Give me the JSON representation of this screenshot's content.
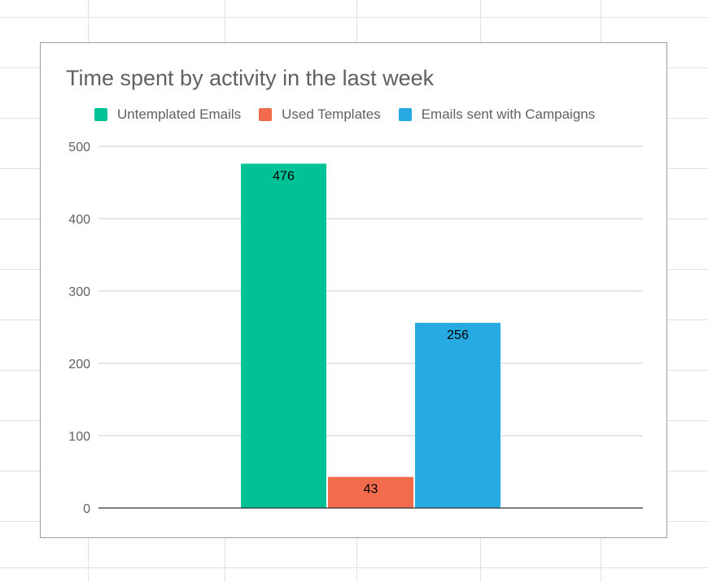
{
  "chart_data": {
    "type": "bar",
    "title": "Time spent by activity in the last week",
    "xlabel": "",
    "ylabel": "",
    "categories": [
      ""
    ],
    "ylim": [
      0,
      500
    ],
    "yticks": [
      0,
      100,
      200,
      300,
      400,
      500
    ],
    "grid": true,
    "legend_position": "top",
    "series": [
      {
        "name": "Untemplated Emails",
        "values": [
          476
        ],
        "color": "#00c297"
      },
      {
        "name": "Used Templates",
        "values": [
          43
        ],
        "color": "#f26b4c"
      },
      {
        "name": "Emails sent with Campaigns",
        "values": [
          256
        ],
        "color": "#27aae2"
      }
    ]
  },
  "colors": {
    "gridline": "#cccccc",
    "baseline": "#333333",
    "sheet_grid": "#e2e2e2"
  }
}
